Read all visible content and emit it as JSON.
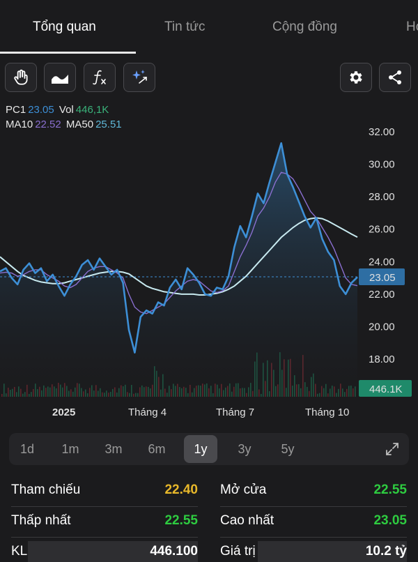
{
  "tabs": [
    {
      "label": "Tổng quan",
      "active": true
    },
    {
      "label": "Tin tức",
      "active": false
    },
    {
      "label": "Cộng đồng",
      "active": false
    },
    {
      "label": "Hỏ",
      "active": false
    }
  ],
  "toolbar": {
    "left_icons": [
      "hand-icon",
      "area-chart-icon",
      "function-icon",
      "sparkle-draw-icon"
    ],
    "right_icons": [
      "gear-icon",
      "share-icon"
    ]
  },
  "indicators": {
    "pc1_label": "PC1",
    "pc1_value": "23.05",
    "vol_label": "Vol",
    "vol_value": "446,1K",
    "ma10_label": "MA10",
    "ma10_value": "22.52",
    "ma50_label": "MA50",
    "ma50_value": "25.51",
    "colors": {
      "pc1": "#3d8fd6",
      "vol": "#3ab27a",
      "ma10": "#8a6fd0",
      "ma50": "#5fb8d9"
    }
  },
  "chart_data": {
    "type": "line",
    "y_ticks": [
      "32.00",
      "30.00",
      "28.00",
      "26.00",
      "24.00",
      "22.00",
      "20.00",
      "18.00"
    ],
    "ylim": [
      16.6,
      32.9
    ],
    "x_ticks": [
      "2025",
      "Tháng 4",
      "Tháng 7",
      "Tháng 10"
    ],
    "current_price_label": "23.05",
    "volume_label": "446.1K",
    "series": [
      {
        "name": "PC1",
        "color": "#3d8fd6",
        "values": [
          23.4,
          23.6,
          23.0,
          22.6,
          23.5,
          23.9,
          23.3,
          23.6,
          22.8,
          23.2,
          22.5,
          21.9,
          22.6,
          23.1,
          23.8,
          24.1,
          23.5,
          24.2,
          23.7,
          23.2,
          23.5,
          22.7,
          19.8,
          18.4,
          20.6,
          21.0,
          20.8,
          21.5,
          21.3,
          22.4,
          22.9,
          22.3,
          23.6,
          23.2,
          22.7,
          22.0,
          21.9,
          22.4,
          22.3,
          23.1,
          24.9,
          26.2,
          25.5,
          26.8,
          28.2,
          27.6,
          28.9,
          30.1,
          31.3,
          29.4,
          28.6,
          27.7,
          26.8,
          26.1,
          26.7,
          25.4,
          24.6,
          24.1,
          22.5,
          22.0,
          22.7,
          23.05
        ]
      },
      {
        "name": "MA10",
        "color": "#8a6fd0",
        "values": [
          23.3,
          23.35,
          23.3,
          23.1,
          23.2,
          23.4,
          23.5,
          23.5,
          23.2,
          23.0,
          22.8,
          22.5,
          22.4,
          22.6,
          23.0,
          23.4,
          23.6,
          23.7,
          23.7,
          23.5,
          23.3,
          23.0,
          22.0,
          21.2,
          20.9,
          20.8,
          21.0,
          21.2,
          21.4,
          21.8,
          22.2,
          22.5,
          22.8,
          22.9,
          22.8,
          22.5,
          22.2,
          22.1,
          22.2,
          22.5,
          23.4,
          24.3,
          25.0,
          25.8,
          26.8,
          27.3,
          28.0,
          28.9,
          29.5,
          29.4,
          29.1,
          28.5,
          27.8,
          27.1,
          26.7,
          26.1,
          25.5,
          24.8,
          23.9,
          23.0,
          22.6,
          22.52
        ]
      },
      {
        "name": "MA50",
        "color": "#5fb8d9",
        "values": [
          24.3,
          24.0,
          23.7,
          23.4,
          23.15,
          23.0,
          22.85,
          22.75,
          22.7,
          22.65,
          22.65,
          22.7,
          22.8,
          22.9,
          23.0,
          23.1,
          23.2,
          23.3,
          23.35,
          23.4,
          23.4,
          23.35,
          23.25,
          23.0,
          22.75,
          22.5,
          22.35,
          22.25,
          22.15,
          22.1,
          22.05,
          22.0,
          22.0,
          22.0,
          21.95,
          21.95,
          22.0,
          22.05,
          22.15,
          22.3,
          22.5,
          22.8,
          23.1,
          23.5,
          23.9,
          24.3,
          24.7,
          25.1,
          25.5,
          25.8,
          26.1,
          26.35,
          26.55,
          26.65,
          26.7,
          26.65,
          26.5,
          26.3,
          26.1,
          25.9,
          25.7,
          25.51
        ]
      }
    ]
  },
  "ranges": {
    "items": [
      "1d",
      "1m",
      "3m",
      "6m",
      "1y",
      "3y",
      "5y"
    ],
    "selected": "1y"
  },
  "stats": {
    "ref_label": "Tham chiếu",
    "ref_value": "22.40",
    "open_label": "Mở cửa",
    "open_value": "22.55",
    "low_label": "Thấp nhất",
    "low_value": "22.55",
    "high_label": "Cao nhất",
    "high_value": "23.05",
    "vol_label": "KL",
    "vol_value": "446.100",
    "value_label": "Giá trị",
    "value_value": "10.2 tỷ",
    "colors": {
      "ref": "#e8b82a",
      "up": "#2ecc40",
      "neutral": "#ffffff"
    }
  }
}
